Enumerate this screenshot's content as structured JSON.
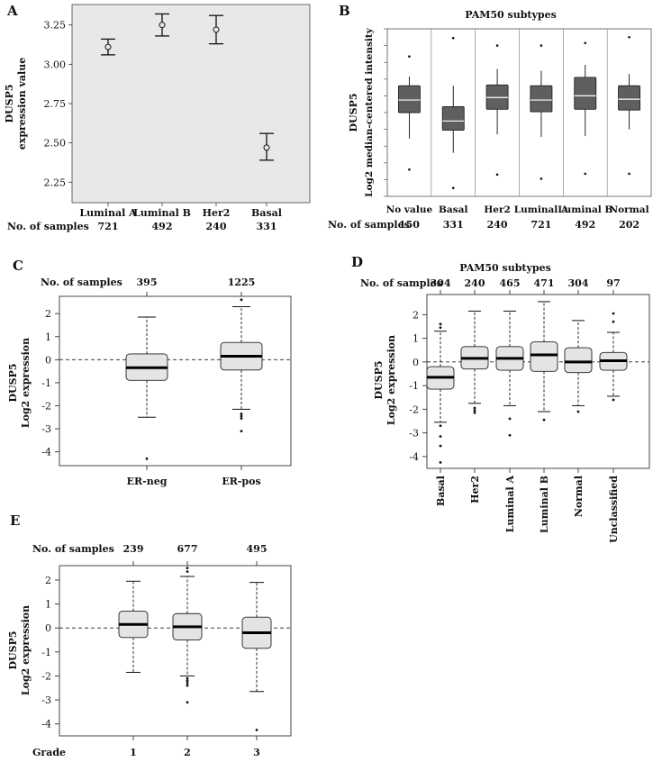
{
  "chart_data": [
    {
      "panel": "A",
      "type": "errorbar",
      "ylabel_line1": "DUSP5",
      "ylabel_line2": "expression value",
      "ylim": [
        2.12,
        3.38
      ],
      "yticks": [
        2.25,
        2.5,
        2.75,
        3.0,
        3.25
      ],
      "ytick_labels": [
        "2.25",
        "2.50",
        "2.75",
        "3.00",
        "3.25"
      ],
      "categories": [
        "Luminal A",
        "Luminal B",
        "Her2",
        "Basal"
      ],
      "means": [
        3.11,
        3.25,
        3.22,
        2.47
      ],
      "lower": [
        3.06,
        3.18,
        3.13,
        2.39
      ],
      "upper": [
        3.16,
        3.32,
        3.31,
        2.56
      ],
      "samples_label": "No. of samples",
      "samples": [
        "721",
        "492",
        "240",
        "331"
      ]
    },
    {
      "panel": "B",
      "type": "boxplot",
      "title": "PAM50 subtypes",
      "ylabel_line1": "DUSP5",
      "ylabel_line2": "Log2 median-centered intensity",
      "ylim": [
        0,
        10
      ],
      "categories": [
        "No value",
        "Basal",
        "Her2",
        "Luminal A",
        "Luminal B",
        "Normal"
      ],
      "boxes": [
        {
          "whislo": 3.45,
          "q1": 5.0,
          "med": 5.75,
          "q3": 6.6,
          "whishi": 7.15,
          "outliers": [
            1.6,
            8.35
          ]
        },
        {
          "whislo": 2.6,
          "q1": 3.95,
          "med": 4.5,
          "q3": 5.35,
          "whishi": 6.6,
          "outliers": [
            0.5,
            9.45
          ]
        },
        {
          "whislo": 3.7,
          "q1": 5.2,
          "med": 5.9,
          "q3": 6.65,
          "whishi": 7.6,
          "outliers": [
            1.3,
            9.0
          ]
        },
        {
          "whislo": 3.55,
          "q1": 5.05,
          "med": 5.75,
          "q3": 6.6,
          "whishi": 7.5,
          "outliers": [
            1.05,
            9.0
          ]
        },
        {
          "whislo": 3.6,
          "q1": 5.2,
          "med": 6.0,
          "q3": 7.1,
          "whishi": 7.85,
          "outliers": [
            1.35,
            9.15
          ]
        },
        {
          "whislo": 4.0,
          "q1": 5.15,
          "med": 5.8,
          "q3": 6.6,
          "whishi": 7.3,
          "outliers": [
            1.35,
            9.5
          ]
        }
      ],
      "samples_label": "No. of samples",
      "samples": [
        "150",
        "331",
        "240",
        "721",
        "492",
        "202"
      ]
    },
    {
      "panel": "C",
      "type": "boxplot",
      "ylabel_line1": "DUSP5",
      "ylabel_line2": "Log2 expression",
      "ylim": [
        -4.6,
        2.75
      ],
      "yticks": [
        -4,
        -3,
        -2,
        -1,
        0,
        1,
        2
      ],
      "categories": [
        "ER-neg",
        "ER-pos"
      ],
      "boxes": [
        {
          "whislo": -2.5,
          "q1": -0.9,
          "med": -0.35,
          "q3": 0.25,
          "whishi": 1.85,
          "outliers": [
            -4.3
          ]
        },
        {
          "whislo": -2.15,
          "q1": -0.45,
          "med": 0.15,
          "q3": 0.75,
          "whishi": 2.3,
          "outliers": [
            -2.35,
            -2.45,
            -2.55,
            -3.1,
            2.6
          ]
        }
      ],
      "samples_label": "No. of samples",
      "samples": [
        "395",
        "1225"
      ]
    },
    {
      "panel": "D",
      "type": "boxplot",
      "title": "PAM50 subtypes",
      "ylabel_line1": "DUSP5",
      "ylabel_line2": "Log2 expression",
      "ylim": [
        -4.5,
        2.85
      ],
      "yticks": [
        -4,
        -3,
        -2,
        -1,
        0,
        1,
        2
      ],
      "categories": [
        "Basal",
        "Her2",
        "Luminal A",
        "Luminal B",
        "Normal",
        "Unclassified"
      ],
      "boxes": [
        {
          "whislo": -2.55,
          "q1": -1.15,
          "med": -0.65,
          "q3": -0.2,
          "whishi": 1.3,
          "outliers": [
            1.45,
            1.6,
            -2.7,
            -3.15,
            -3.55,
            -4.25
          ]
        },
        {
          "whislo": -1.75,
          "q1": -0.3,
          "med": 0.15,
          "q3": 0.65,
          "whishi": 2.15,
          "outliers": [
            -1.95,
            -2.05,
            -2.15
          ]
        },
        {
          "whislo": -1.85,
          "q1": -0.35,
          "med": 0.15,
          "q3": 0.65,
          "whishi": 2.15,
          "outliers": [
            -2.4,
            -3.1
          ]
        },
        {
          "whislo": -2.1,
          "q1": -0.4,
          "med": 0.3,
          "q3": 0.85,
          "whishi": 2.55,
          "outliers": [
            -2.45
          ]
        },
        {
          "whislo": -1.85,
          "q1": -0.45,
          "med": 0.0,
          "q3": 0.6,
          "whishi": 1.75,
          "outliers": [
            -2.1
          ]
        },
        {
          "whislo": -1.45,
          "q1": -0.35,
          "med": 0.05,
          "q3": 0.4,
          "whishi": 1.25,
          "outliers": [
            1.7,
            2.05,
            -1.6
          ]
        }
      ],
      "samples_label": "No. of samples",
      "samples": [
        "304",
        "240",
        "465",
        "471",
        "304",
        "97"
      ]
    },
    {
      "panel": "E",
      "type": "boxplot",
      "ylabel_line1": "DUSP5",
      "ylabel_line2": "Log2 expression",
      "ylim": [
        -4.5,
        2.6
      ],
      "yticks": [
        -4,
        -3,
        -2,
        -1,
        0,
        1,
        2
      ],
      "categories": [
        "1",
        "2",
        "3"
      ],
      "xlabel": "Grade",
      "boxes": [
        {
          "whislo": -1.85,
          "q1": -0.4,
          "med": 0.15,
          "q3": 0.7,
          "whishi": 1.95,
          "outliers": []
        },
        {
          "whislo": -2.0,
          "q1": -0.5,
          "med": 0.05,
          "q3": 0.6,
          "whishi": 2.15,
          "outliers": [
            2.35,
            2.5,
            -2.1,
            -2.2,
            -2.3,
            -2.4,
            -3.1
          ]
        },
        {
          "whislo": -2.65,
          "q1": -0.85,
          "med": -0.2,
          "q3": 0.45,
          "whishi": 1.9,
          "outliers": [
            -4.25
          ]
        }
      ],
      "samples_label": "No. of samples",
      "samples": [
        "239",
        "677",
        "495"
      ]
    }
  ]
}
